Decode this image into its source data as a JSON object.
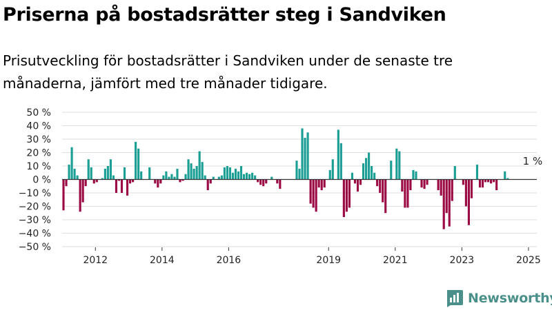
{
  "header": {
    "title": "Priserna på bostadsrätter steg i Sandviken",
    "subtitle": "Prisutveckling för bostadsrätter i Sandviken under de senaste tre månaderna, jämfört med tre månader tidigare."
  },
  "logo": {
    "text": "Newsworthy",
    "icon": "newsworthy-bar-chart-logo",
    "color": "#4a8f89"
  },
  "colors": {
    "positive": "#1b9e94",
    "negative": "#9b0a44",
    "grid": "#dddddd",
    "axis": "#333333"
  },
  "chart_data": {
    "type": "bar",
    "title": "",
    "xlabel": "",
    "ylabel": "",
    "x_start": "2011-01",
    "x_end": "2025-03",
    "ylim": [
      -50,
      50
    ],
    "yticks": [
      50,
      40,
      30,
      20,
      10,
      0,
      -10,
      -20,
      -30,
      -40,
      -50
    ],
    "ytick_labels": [
      "50 %",
      "40 %",
      "30 %",
      "20 %",
      "10 %",
      "0 %",
      "−10 %",
      "−20 %",
      "−30 %",
      "−40 %",
      "−50 %"
    ],
    "xticks": [
      2012,
      2014,
      2016,
      2019,
      2021,
      2023,
      2025
    ],
    "xtick_labels": [
      "2012",
      "2014",
      "2016",
      "2019",
      "2021",
      "2023",
      "2025"
    ],
    "grid": true,
    "annotation": {
      "text": "1 %",
      "date": "2025-02"
    },
    "series": [
      {
        "values": [
          -23,
          -5,
          11,
          24,
          8,
          3,
          -24,
          -17,
          -5,
          15,
          9,
          -3,
          -2,
          0,
          1,
          8,
          10,
          15,
          3,
          -10,
          -1,
          -10,
          9,
          -12,
          -3,
          -2,
          28,
          23,
          6,
          0,
          0,
          9,
          0,
          -3,
          -6,
          -3,
          3,
          6,
          2,
          4,
          2,
          8,
          -2,
          -1,
          4,
          15,
          12,
          8,
          10,
          21,
          13,
          3,
          -8,
          -3,
          2,
          0,
          2,
          3,
          9,
          10,
          9,
          5,
          8,
          6,
          10,
          4,
          5,
          4,
          5,
          3,
          -2,
          -4,
          -5,
          -3,
          0,
          2,
          0,
          -3,
          -7,
          0,
          0,
          0,
          0,
          0,
          14,
          8,
          38,
          31,
          35,
          -18,
          -21,
          -24,
          -6,
          -8,
          -6,
          0,
          7,
          15,
          0,
          37,
          27,
          -28,
          -24,
          -21,
          5,
          -3,
          -9,
          -4,
          12,
          16,
          20,
          10,
          5,
          -5,
          -10,
          -17,
          -25,
          0,
          14,
          0,
          23,
          21,
          -9,
          -21,
          -21,
          -8,
          7,
          6,
          0,
          -6,
          -7,
          -4,
          0,
          0,
          0,
          -8,
          -12,
          -37,
          -25,
          -35,
          -16,
          10,
          0,
          0,
          -4,
          -20,
          -34,
          -14,
          0,
          11,
          -6,
          -6,
          -2,
          -2,
          -3,
          -2,
          -8,
          0,
          0,
          6,
          1
        ]
      }
    ]
  }
}
